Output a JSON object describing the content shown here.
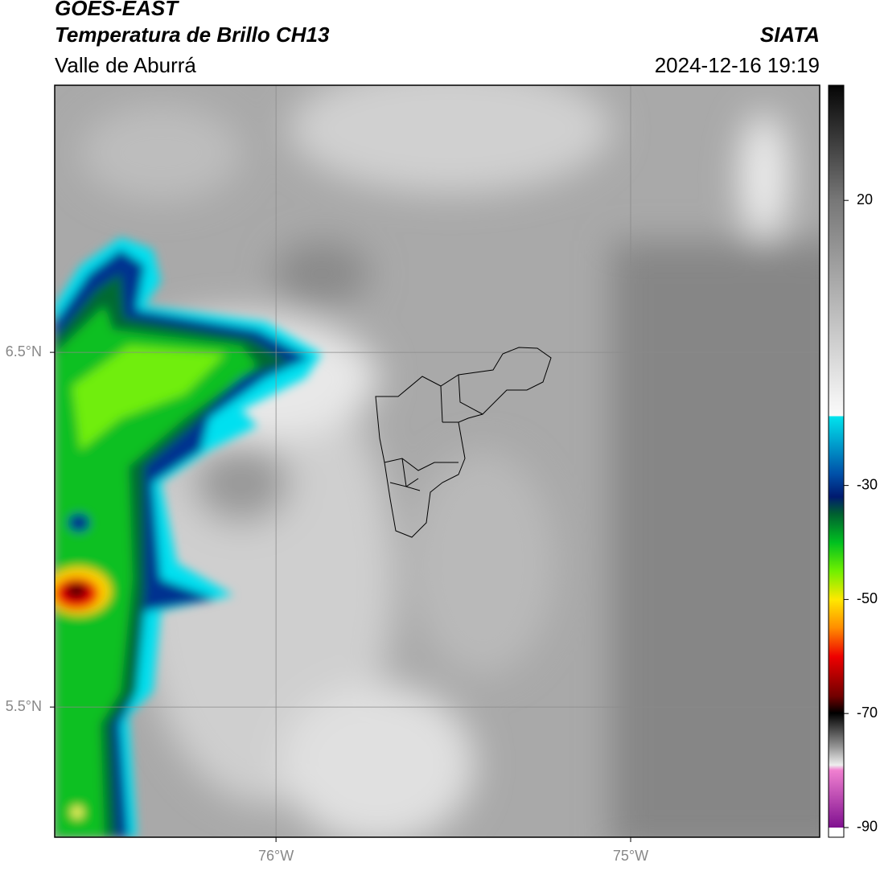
{
  "header": {
    "title": "GOES-EAST",
    "subtitle": "Temperatura de Brillo CH13",
    "region": "Valle de Aburrá",
    "source": "SIATA",
    "datetime": "2024-12-16 19:19"
  },
  "map": {
    "xlim": [
      -76.624,
      -74.467
    ],
    "ylim": [
      5.133,
      7.253
    ],
    "xticks": [
      {
        "value": -76,
        "label": "76°W"
      },
      {
        "value": -75,
        "label": "75°W"
      }
    ],
    "yticks": [
      {
        "value": 6.5,
        "label": "6.5°N"
      },
      {
        "value": 5.5,
        "label": "5.5°N"
      }
    ],
    "grid": true
  },
  "colorbar": {
    "lim": [
      -91.7,
      40.2
    ],
    "ticks": [
      20,
      -30,
      -50,
      -70,
      -90
    ]
  }
}
